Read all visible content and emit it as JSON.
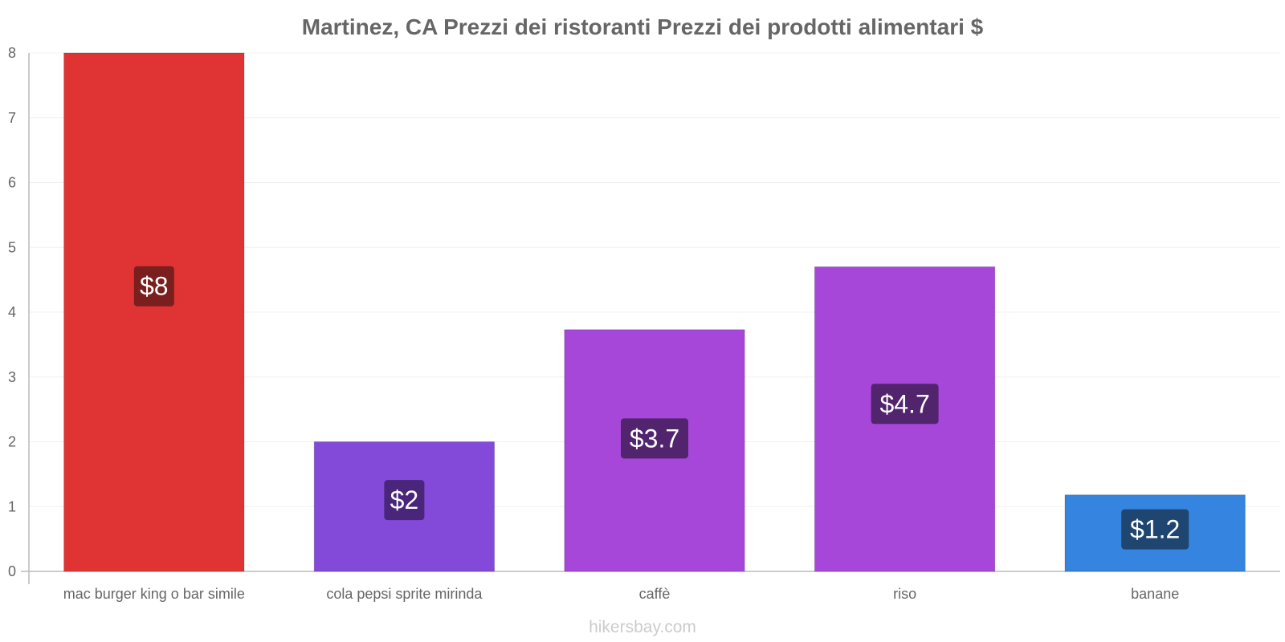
{
  "chart_data": {
    "type": "bar",
    "title": "Martinez, CA Prezzi dei ristoranti Prezzi dei prodotti alimentari $",
    "xlabel": "",
    "ylabel": "",
    "ylim": [
      0,
      8
    ],
    "yticks": [
      "0",
      "1",
      "2",
      "3",
      "4",
      "5",
      "6",
      "7",
      "8"
    ],
    "grid": true,
    "legend": "none",
    "categories": [
      "mac burger king o bar simile",
      "cola pepsi sprite mirinda",
      "caffè",
      "riso",
      "banane"
    ],
    "values": [
      8,
      2,
      3.73,
      4.7,
      1.18
    ],
    "value_labels": [
      "$8",
      "$2",
      "$3.7",
      "$4.7",
      "$1.2"
    ],
    "bar_colors": [
      "#e03434",
      "#834ad9",
      "#a647d9",
      "#a647d9",
      "#3584e0"
    ],
    "label_box_colors": [
      "#7a1e1e",
      "#4a267a",
      "#52246e",
      "#52246e",
      "#1f4670"
    ]
  },
  "watermark": "hikersbay.com"
}
